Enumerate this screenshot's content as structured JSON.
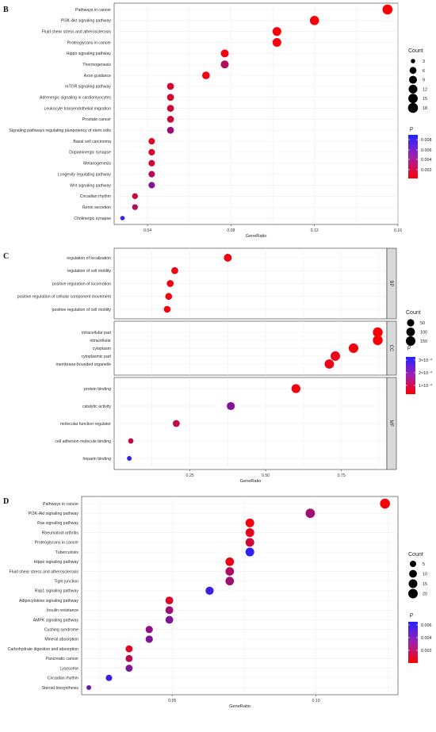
{
  "chart_data": [
    {
      "panel": "B",
      "type": "scatter",
      "xlabel": "GeneRatio",
      "xticks": [
        "0.04",
        "0.08",
        "0.12",
        "0.16"
      ],
      "xlim": [
        0.024,
        0.16
      ],
      "size_legend_title": "Count",
      "size_breaks": [
        3,
        6,
        9,
        12,
        15,
        18
      ],
      "color_legend_title": "p",
      "color_breaks": [
        "0.008",
        "0.006",
        "0.004",
        "0.002"
      ],
      "color_range": [
        0,
        0.0085
      ],
      "colors": {
        "low": "#ff0000",
        "high": "#2323ff"
      },
      "points": [
        {
          "term": "Pathways in cancer",
          "x": 0.155,
          "count": 18,
          "p": 0.0001
        },
        {
          "term": "PI3K-Akt signaling pathway",
          "x": 0.12,
          "count": 14,
          "p": 0.0003
        },
        {
          "term": "Fluid shear stress and atherosclerosis",
          "x": 0.102,
          "count": 12,
          "p": 0.0002
        },
        {
          "term": "Proteoglycans in cancer",
          "x": 0.102,
          "count": 12,
          "p": 0.0004
        },
        {
          "term": "Hippo signaling pathway",
          "x": 0.077,
          "count": 9,
          "p": 0.0005
        },
        {
          "term": "Thermogenesis",
          "x": 0.077,
          "count": 9,
          "p": 0.003
        },
        {
          "term": "Axon guidance",
          "x": 0.068,
          "count": 8,
          "p": 0.0006
        },
        {
          "term": "mTOR signaling pathway",
          "x": 0.051,
          "count": 6,
          "p": 0.0015
        },
        {
          "term": "Adrenergic signaling in cardiomyocytes",
          "x": 0.051,
          "count": 6,
          "p": 0.0015
        },
        {
          "term": "Leukocyte transendothelial migration",
          "x": 0.051,
          "count": 6,
          "p": 0.0018
        },
        {
          "term": "Prostate cancer",
          "x": 0.051,
          "count": 6,
          "p": 0.002
        },
        {
          "term": "Signaling pathways regulating pluripotency of stem cells",
          "x": 0.051,
          "count": 6,
          "p": 0.004
        },
        {
          "term": "Basal cell carcinoma",
          "x": 0.042,
          "count": 5,
          "p": 0.001
        },
        {
          "term": "Dopaminergic synapse",
          "x": 0.042,
          "count": 5,
          "p": 0.0015
        },
        {
          "term": "Melanogenesis",
          "x": 0.042,
          "count": 5,
          "p": 0.0018
        },
        {
          "term": "Longevity regulating pathway",
          "x": 0.042,
          "count": 5,
          "p": 0.003
        },
        {
          "term": "Wnt signaling pathway",
          "x": 0.042,
          "count": 5,
          "p": 0.005
        },
        {
          "term": "Circadian rhythm",
          "x": 0.034,
          "count": 4,
          "p": 0.002
        },
        {
          "term": "Renin secretion",
          "x": 0.034,
          "count": 4,
          "p": 0.003
        },
        {
          "term": "Cholinergic synapse",
          "x": 0.028,
          "count": 3,
          "p": 0.008
        }
      ]
    },
    {
      "panel": "C",
      "type": "scatter",
      "xlabel": "GeneRatio",
      "xticks": [
        "0.25",
        "0.50",
        "0.75"
      ],
      "xlim": [
        0.0,
        0.9
      ],
      "size_legend_title": "Count",
      "size_breaks": [
        50,
        100,
        150
      ],
      "color_legend_title": "p",
      "color_breaks": [
        "3×10⁻⁴",
        "2×10⁻⁴",
        "1×10⁻⁴"
      ],
      "color_range": [
        0,
        0.00035
      ],
      "colors": {
        "low": "#ff0000",
        "high": "#2323ff"
      },
      "facets": [
        {
          "label": "BP",
          "points": [
            {
              "term": "regulation of localization",
              "x": 0.375,
              "count": 70,
              "p": 2e-05
            },
            {
              "term": "regulation of cell motility",
              "x": 0.2,
              "count": 40,
              "p": 3e-05
            },
            {
              "term": "positive regulation of locomotion",
              "x": 0.185,
              "count": 38,
              "p": 2e-05
            },
            {
              "term": "positive regulation of cellular component movement",
              "x": 0.18,
              "count": 37,
              "p": 2e-05
            },
            {
              "term": "positive regulation of cell motility",
              "x": 0.175,
              "count": 36,
              "p": 2e-05
            }
          ]
        },
        {
          "label": "CC",
          "points": [
            {
              "term": "intracellular part",
              "x": 0.87,
              "count": 170,
              "p": 1e-05
            },
            {
              "term": "intracellular",
              "x": 0.87,
              "count": 170,
              "p": 1e-05
            },
            {
              "term": "cytoplasm",
              "x": 0.79,
              "count": 155,
              "p": 2e-05
            },
            {
              "term": "cytoplasmic part",
              "x": 0.73,
              "count": 145,
              "p": 3e-05
            },
            {
              "term": "membrane-bounded organelle",
              "x": 0.71,
              "count": 140,
              "p": 3e-05
            }
          ]
        },
        {
          "label": "MF",
          "points": [
            {
              "term": "protein binding",
              "x": 0.6,
              "count": 120,
              "p": 2e-05
            },
            {
              "term": "catalytic activity",
              "x": 0.385,
              "count": 75,
              "p": 0.0002
            },
            {
              "term": "molecular function regulator",
              "x": 0.205,
              "count": 40,
              "p": 0.0001
            },
            {
              "term": "cell adhesion molecule binding",
              "x": 0.055,
              "count": 12,
              "p": 0.0001
            },
            {
              "term": "heparin binding",
              "x": 0.05,
              "count": 10,
              "p": 0.00033
            }
          ]
        }
      ]
    },
    {
      "panel": "D",
      "type": "scatter",
      "xlabel": "GeneRatio",
      "xticks": [
        "0.05",
        "0.10"
      ],
      "xlim": [
        0.0185,
        0.1285
      ],
      "size_legend_title": "Count",
      "size_breaks": [
        5,
        10,
        15,
        20
      ],
      "color_legend_title": "p",
      "color_breaks": [
        "0.006",
        "0.004",
        "0.002"
      ],
      "color_range": [
        0,
        0.0068
      ],
      "colors": {
        "low": "#ff0000",
        "high": "#2323ff"
      },
      "points": [
        {
          "term": "Pathways in cancer",
          "x": 0.124,
          "count": 24,
          "p": 0.0002
        },
        {
          "term": "PI3K-Akt signaling pathway",
          "x": 0.098,
          "count": 19,
          "p": 0.003
        },
        {
          "term": "Ras signaling pathway",
          "x": 0.077,
          "count": 15,
          "p": 0.0005
        },
        {
          "term": "Rheumatoid arthritis",
          "x": 0.077,
          "count": 15,
          "p": 0.0008
        },
        {
          "term": "Proteoglycans in cancer",
          "x": 0.077,
          "count": 15,
          "p": 0.0015
        },
        {
          "term": "Tuberculosis",
          "x": 0.077,
          "count": 15,
          "p": 0.0065
        },
        {
          "term": "Hippo signaling pathway",
          "x": 0.07,
          "count": 14,
          "p": 0.0005
        },
        {
          "term": "Fluid shear stress and atherosclerosis",
          "x": 0.07,
          "count": 14,
          "p": 0.0025
        },
        {
          "term": "Tight junction",
          "x": 0.07,
          "count": 14,
          "p": 0.003
        },
        {
          "term": "Rap1 signaling pathway",
          "x": 0.063,
          "count": 12,
          "p": 0.006
        },
        {
          "term": "Adipocytokine signaling pathway",
          "x": 0.049,
          "count": 10,
          "p": 0.001
        },
        {
          "term": "Insulin resistance",
          "x": 0.049,
          "count": 10,
          "p": 0.003
        },
        {
          "term": "AMPK signaling pathway",
          "x": 0.049,
          "count": 10,
          "p": 0.004
        },
        {
          "term": "Cushing syndrome",
          "x": 0.042,
          "count": 8,
          "p": 0.0035
        },
        {
          "term": "Mineral absorption",
          "x": 0.042,
          "count": 8,
          "p": 0.004
        },
        {
          "term": "Carbohydrate digestion and absorption",
          "x": 0.035,
          "count": 7,
          "p": 0.001
        },
        {
          "term": "Pancreatic cancer",
          "x": 0.035,
          "count": 7,
          "p": 0.002
        },
        {
          "term": "Lysosome",
          "x": 0.035,
          "count": 7,
          "p": 0.004
        },
        {
          "term": "Circadian rhythm",
          "x": 0.028,
          "count": 5,
          "p": 0.006
        },
        {
          "term": "Steroid biosynthesis",
          "x": 0.021,
          "count": 3,
          "p": 0.0045
        }
      ]
    }
  ]
}
